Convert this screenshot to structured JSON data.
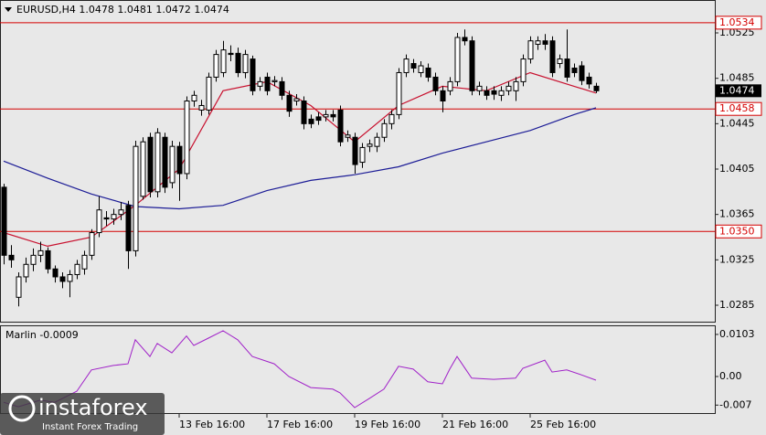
{
  "chart_data": {
    "type": "candlestick",
    "title": "EURUSD,H4  1.0478 1.0481 1.0472 1.0474",
    "open": [
      1.0389,
      1.0329,
      1.0292,
      1.031,
      1.0321,
      1.0329,
      1.0333,
      1.0317,
      1.031,
      1.0306,
      1.0312,
      1.0317,
      1.0329,
      1.0349,
      1.0362,
      1.0361,
      1.0365,
      1.0373,
      1.0333,
      1.0381,
      1.0433,
      1.0385,
      1.0433,
      1.0393,
      1.0425,
      1.0401,
      1.0465,
      1.0457,
      1.0457,
      1.0486,
      1.049,
      1.0507,
      1.0507,
      1.049,
      1.0502,
      1.0478,
      1.0486,
      1.0482,
      1.0482,
      1.047,
      1.0465,
      1.0465,
      1.0449,
      1.0451,
      1.0451,
      1.0453,
      1.0457,
      1.0433,
      1.0433,
      1.0411,
      1.0425,
      1.0425,
      1.0433,
      1.0445,
      1.0453,
      1.049,
      1.0498,
      1.049,
      1.0494,
      1.0486,
      1.0474,
      1.0474,
      1.0482,
      1.0521,
      1.0518,
      1.0474,
      1.0474,
      1.0474,
      1.047,
      1.0474,
      1.0474,
      1.0482,
      1.0502,
      1.0515,
      1.0518,
      1.0518,
      1.0498,
      1.0502,
      1.0494,
      1.0496,
      1.0486,
      1.0478
    ],
    "high": [
      1.0392,
      1.0338,
      1.0314,
      1.0327,
      1.0335,
      1.0341,
      1.0336,
      1.032,
      1.0314,
      1.0316,
      1.0325,
      1.0333,
      1.0352,
      1.0381,
      1.0368,
      1.037,
      1.0376,
      1.0377,
      1.043,
      1.0433,
      1.0437,
      1.0441,
      1.0437,
      1.043,
      1.0429,
      1.0469,
      1.0474,
      1.0466,
      1.049,
      1.051,
      1.0518,
      1.0514,
      1.0512,
      1.051,
      1.0505,
      1.0486,
      1.049,
      1.0487,
      1.0486,
      1.0474,
      1.0471,
      1.0469,
      1.0453,
      1.0455,
      1.0457,
      1.0457,
      1.0461,
      1.0439,
      1.0437,
      1.0428,
      1.0431,
      1.0437,
      1.0449,
      1.0457,
      1.0494,
      1.0506,
      1.0502,
      1.05,
      1.0498,
      1.049,
      1.0478,
      1.0486,
      1.0525,
      1.0528,
      1.0522,
      1.0482,
      1.0478,
      1.0478,
      1.0478,
      1.0482,
      1.0486,
      1.0506,
      1.0522,
      1.0522,
      1.0524,
      1.0522,
      1.0506,
      1.0528,
      1.0498,
      1.05,
      1.049,
      1.0481
    ],
    "low": [
      1.0321,
      1.0318,
      1.0284,
      1.0305,
      1.0315,
      1.0323,
      1.0313,
      1.0305,
      1.03,
      1.0292,
      1.0308,
      1.0312,
      1.0325,
      1.0345,
      1.0355,
      1.0356,
      1.036,
      1.0317,
      1.0328,
      1.0378,
      1.038,
      1.038,
      1.0384,
      1.0388,
      1.0377,
      1.0396,
      1.046,
      1.0452,
      1.0453,
      1.0482,
      1.0486,
      1.05,
      1.0486,
      1.0485,
      1.047,
      1.0474,
      1.047,
      1.0478,
      1.0466,
      1.0451,
      1.0461,
      1.044,
      1.0441,
      1.0444,
      1.0447,
      1.0447,
      1.0425,
      1.0429,
      1.0401,
      1.0406,
      1.042,
      1.042,
      1.0429,
      1.044,
      1.0449,
      1.0486,
      1.049,
      1.0486,
      1.0482,
      1.047,
      1.0455,
      1.047,
      1.0478,
      1.0514,
      1.047,
      1.047,
      1.0466,
      1.0466,
      1.0465,
      1.047,
      1.0465,
      1.0478,
      1.0498,
      1.051,
      1.051,
      1.0486,
      1.0494,
      1.0482,
      1.0486,
      1.0479,
      1.0476,
      1.0472
    ],
    "close": [
      1.0329,
      1.0325,
      1.031,
      1.0321,
      1.0329,
      1.0333,
      1.0317,
      1.031,
      1.0306,
      1.0312,
      1.0321,
      1.0329,
      1.0349,
      1.0369,
      1.0361,
      1.0365,
      1.0369,
      1.0333,
      1.0425,
      1.0429,
      1.0385,
      1.0437,
      1.0389,
      1.0425,
      1.0401,
      1.0465,
      1.047,
      1.0461,
      1.0486,
      1.0506,
      1.051,
      1.0506,
      1.049,
      1.0506,
      1.0474,
      1.0482,
      1.0474,
      1.0483,
      1.047,
      1.0456,
      1.0467,
      1.0445,
      1.0445,
      1.0448,
      1.0453,
      1.0451,
      1.0429,
      1.0435,
      1.0409,
      1.0424,
      1.0427,
      1.0433,
      1.0445,
      1.0453,
      1.049,
      1.0502,
      1.0494,
      1.0496,
      1.0486,
      1.0474,
      1.0465,
      1.0482,
      1.0521,
      1.0518,
      1.0474,
      1.0478,
      1.047,
      1.0471,
      1.0474,
      1.0478,
      1.0482,
      1.0502,
      1.0518,
      1.0518,
      1.0515,
      1.049,
      1.0502,
      1.0486,
      1.049,
      1.0483,
      1.048,
      1.0474
    ],
    "colors": {
      "up": "#ffffff",
      "down": "#000000",
      "outline": "#000000"
    },
    "xlim": [
      -0.5,
      97.25
    ],
    "xticks": [
      {
        "value": 24,
        "label": "13 Feb 16:00"
      },
      {
        "value": 36,
        "label": "17 Feb 16:00"
      },
      {
        "value": 48,
        "label": "19 Feb 16:00"
      },
      {
        "value": 60,
        "label": "21 Feb 16:00"
      },
      {
        "value": 72,
        "label": "25 Feb 16:00"
      }
    ],
    "ylim": [
      1.02705,
      1.0554
    ],
    "yticks": [
      1.0525,
      1.0485,
      1.0445,
      1.0405,
      1.0365,
      1.0325,
      1.0285
    ],
    "levels": [
      1.0534,
      1.0458,
      {
        "value": 1.035,
        "label": "1.0350"
      }
    ],
    "level_color": "#d40000",
    "moving_averages": [
      {
        "color": "#c8102e",
        "x": [
          0,
          6,
          12,
          18,
          24,
          30,
          36,
          42,
          48,
          54,
          60,
          66,
          72,
          78,
          81
        ],
        "values": [
          1.0349,
          1.0337,
          1.0345,
          1.0373,
          1.0405,
          1.0474,
          1.0482,
          1.0461,
          1.0429,
          1.0461,
          1.0478,
          1.0474,
          1.049,
          1.0478,
          1.0472
        ]
      },
      {
        "color": "#1c1c96",
        "x": [
          0,
          6,
          12,
          18,
          24,
          30,
          36,
          42,
          48,
          54,
          60,
          66,
          72,
          78,
          81
        ],
        "values": [
          1.0412,
          1.0397,
          1.0383,
          1.0372,
          1.037,
          1.0373,
          1.0386,
          1.0395,
          1.04,
          1.0407,
          1.0419,
          1.0429,
          1.0439,
          1.0453,
          1.0459
        ]
      }
    ],
    "indicator": {
      "label": "Marlin -0.0009",
      "color": "#a020c8",
      "x": [
        0,
        2,
        5,
        7,
        10,
        12,
        15,
        17,
        18,
        20,
        21,
        23,
        25,
        26,
        28,
        30,
        32,
        34,
        37,
        39,
        42,
        45,
        46,
        48,
        50,
        52,
        54,
        56,
        58,
        60,
        61,
        62,
        64,
        67,
        70,
        71,
        74,
        75,
        77,
        79,
        81
      ],
      "values": [
        -0.0063,
        -0.0074,
        -0.0058,
        -0.0063,
        -0.0036,
        0.0016,
        0.0027,
        0.0031,
        0.009,
        0.0049,
        0.0081,
        0.0058,
        0.0099,
        0.0076,
        0.0094,
        0.0112,
        0.009,
        0.0049,
        0.0031,
        0,
        -0.0027,
        -0.0031,
        -0.004,
        -0.0076,
        -0.0054,
        -0.0031,
        0.0025,
        0.0018,
        -0.0013,
        -0.0018,
        0.0018,
        0.0049,
        -0.0004,
        -0.0007,
        -0.0004,
        0.002,
        0.004,
        0.0011,
        0.0016,
        0.0004,
        -0.0009
      ],
      "ylim": [
        -0.00895,
        0.0123
      ],
      "yticks": [
        0.0103,
        {
          "value": 0,
          "label": "0.00"
        },
        -0.007
      ]
    }
  },
  "watermark": {
    "brand": "instaforex",
    "tagline": "Instant Forex Trading"
  }
}
